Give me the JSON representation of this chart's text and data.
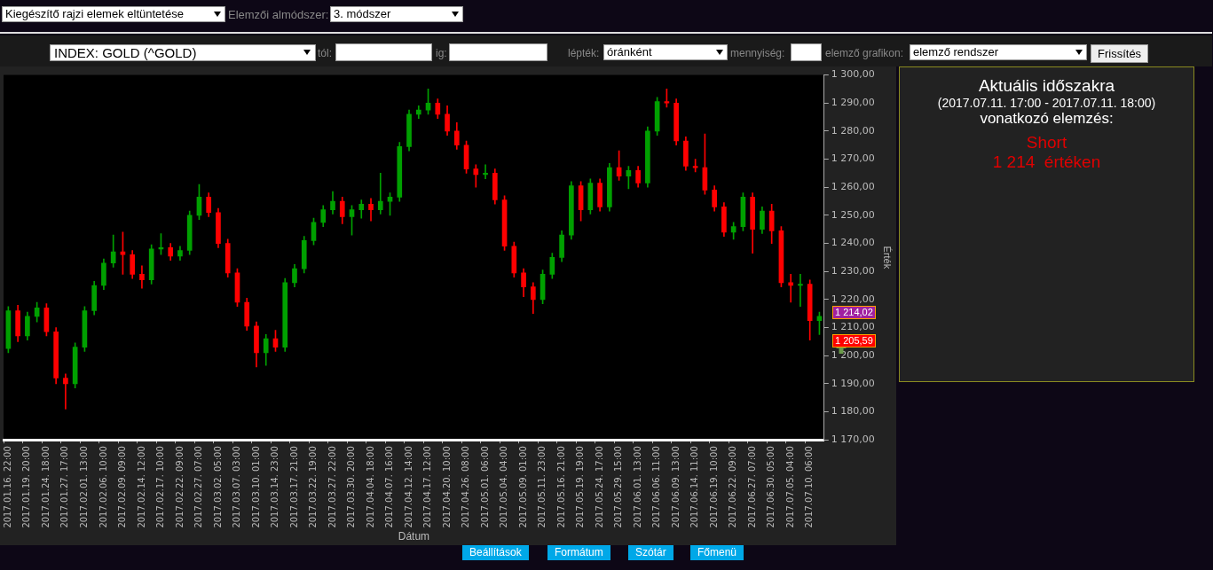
{
  "chart_data": {
    "type": "candlestick",
    "xlabel": "Dátum",
    "ylabel": "Érték",
    "categories": [
      "2017.01.16. 22:00",
      null,
      "2017.01.19. 20:00",
      null,
      "2017.01.24. 18:00",
      null,
      "2017.01.27. 17:00",
      null,
      "2017.02.01. 13:00",
      null,
      "2017.02.06. 10:00",
      null,
      "2017.02.09. 09:00",
      null,
      "2017.02.14. 12:00",
      null,
      "2017.02.17. 10:00",
      null,
      "2017.02.22. 09:00",
      null,
      "2017.02.27. 07:00",
      null,
      "2017.03.02. 05:00",
      null,
      "2017.03.07. 03:00",
      null,
      "2017.03.10. 01:00",
      null,
      "2017.03.14. 23:00",
      null,
      "2017.03.17. 21:00",
      null,
      "2017.03.22. 19:00",
      null,
      "2017.03.27. 22:00",
      null,
      "2017.03.30. 20:00",
      null,
      "2017.04.04. 18:00",
      null,
      "2017.04.07. 16:00",
      null,
      "2017.04.12. 14:00",
      null,
      "2017.04.17. 12:00",
      null,
      "2017.04.20. 10:00",
      null,
      "2017.04.26. 08:00",
      null,
      "2017.05.01. 06:00",
      null,
      "2017.05.04. 04:00",
      null,
      "2017.05.09. 01:00",
      null,
      "2017.05.11. 23:00",
      null,
      "2017.05.16. 21:00",
      null,
      "2017.05.19. 19:00",
      null,
      "2017.05.24. 17:00",
      null,
      "2017.05.29. 15:00",
      null,
      "2017.06.01. 13:00",
      null,
      "2017.06.06. 11:00",
      null,
      "2017.06.09. 13:00",
      null,
      "2017.06.14. 11:00",
      null,
      "2017.06.19. 10:00",
      null,
      "2017.06.22. 09:00",
      null,
      "2017.06.27. 07:00",
      null,
      "2017.06.30. 05:00",
      null,
      "2017.07.05. 04:00",
      null,
      "2017.07.10. 06:00",
      null
    ],
    "ohlc": [
      [
        1202.5,
        1217.5,
        1201,
        1216
      ],
      [
        1216,
        1218,
        1205,
        1207
      ],
      [
        1207,
        1215.5,
        1205.5,
        1214
      ],
      [
        1214,
        1219,
        1212,
        1217
      ],
      [
        1217,
        1218.5,
        1207,
        1208.5
      ],
      [
        1208.5,
        1210,
        1190,
        1192
      ],
      [
        1192,
        1193.5,
        1181,
        1190
      ],
      [
        1190,
        1204.5,
        1188.5,
        1203
      ],
      [
        1203,
        1217.5,
        1201.5,
        1216
      ],
      [
        1216,
        1226.5,
        1214.5,
        1225
      ],
      [
        1225,
        1234.5,
        1223.5,
        1233
      ],
      [
        1233,
        1243,
        1231.5,
        1237
      ],
      [
        1237,
        1244,
        1229,
        1236
      ],
      [
        1236,
        1237.5,
        1227.5,
        1229
      ],
      [
        1229,
        1232,
        1224,
        1227
      ],
      [
        1227,
        1239.5,
        1225.5,
        1238
      ],
      [
        1238,
        1243.5,
        1236,
        1238.5
      ],
      [
        1238.5,
        1240,
        1234,
        1235.5
      ],
      [
        1235.5,
        1239,
        1234,
        1237.5
      ],
      [
        1237.5,
        1251.5,
        1236,
        1250
      ],
      [
        1250,
        1261,
        1248.5,
        1256.5
      ],
      [
        1256.5,
        1258,
        1249.5,
        1251
      ],
      [
        1251,
        1252.5,
        1238.5,
        1240
      ],
      [
        1240,
        1241.5,
        1228,
        1229.5
      ],
      [
        1229.5,
        1231,
        1217.5,
        1219
      ],
      [
        1219,
        1220.5,
        1209,
        1210.5
      ],
      [
        1210.5,
        1212,
        1196,
        1201
      ],
      [
        1201,
        1207.5,
        1196.5,
        1206
      ],
      [
        1206,
        1209,
        1201.5,
        1203
      ],
      [
        1203,
        1227.5,
        1201.5,
        1226
      ],
      [
        1226,
        1232.5,
        1224.5,
        1231
      ],
      [
        1231,
        1242.5,
        1229.5,
        1241
      ],
      [
        1241,
        1249,
        1239.5,
        1247.5
      ],
      [
        1247.5,
        1253.5,
        1246,
        1252
      ],
      [
        1252,
        1258.5,
        1250.5,
        1255
      ],
      [
        1255,
        1256.5,
        1247,
        1249.5
      ],
      [
        1249.5,
        1253.5,
        1243,
        1252
      ],
      [
        1252,
        1255.5,
        1249,
        1254
      ],
      [
        1254,
        1256,
        1248,
        1252
      ],
      [
        1252,
        1265,
        1250.5,
        1255
      ],
      [
        1255,
        1258,
        1250,
        1256.5
      ],
      [
        1256.5,
        1276,
        1255,
        1274.5
      ],
      [
        1274.5,
        1287.5,
        1273,
        1286
      ],
      [
        1286,
        1289,
        1284.5,
        1287.5
      ],
      [
        1287.5,
        1295,
        1286,
        1290
      ],
      [
        1290,
        1291.5,
        1284.5,
        1286
      ],
      [
        1286,
        1289,
        1278.5,
        1280
      ],
      [
        1280,
        1283,
        1273.5,
        1275
      ],
      [
        1275,
        1276.5,
        1265,
        1266.5
      ],
      [
        1266.5,
        1268,
        1260,
        1264.5
      ],
      [
        1264.5,
        1268,
        1263,
        1265
      ],
      [
        1265,
        1266.5,
        1254,
        1255.5
      ],
      [
        1255.5,
        1257,
        1237.5,
        1239
      ],
      [
        1239,
        1240.5,
        1228,
        1229.5
      ],
      [
        1229.5,
        1231,
        1221,
        1224.5
      ],
      [
        1224.5,
        1226,
        1215,
        1220
      ],
      [
        1220,
        1230.5,
        1218.5,
        1229
      ],
      [
        1229,
        1236.5,
        1227.5,
        1235
      ],
      [
        1235,
        1244.5,
        1233.5,
        1243
      ],
      [
        1243,
        1262,
        1241.5,
        1260.5
      ],
      [
        1260.5,
        1262,
        1248,
        1252
      ],
      [
        1252,
        1263,
        1250.5,
        1261.5
      ],
      [
        1261.5,
        1263,
        1251.5,
        1253
      ],
      [
        1253,
        1268.5,
        1251.5,
        1267
      ],
      [
        1267,
        1273,
        1262.5,
        1264
      ],
      [
        1264,
        1267.5,
        1259.5,
        1266
      ],
      [
        1266,
        1267.5,
        1260,
        1261.5
      ],
      [
        1261.5,
        1281.5,
        1260,
        1280
      ],
      [
        1280,
        1292,
        1278.5,
        1290.5
      ],
      [
        1290.5,
        1295,
        1288.5,
        1290
      ],
      [
        1290,
        1291.5,
        1275,
        1276.5
      ],
      [
        1276.5,
        1278,
        1266,
        1267.5
      ],
      [
        1267.5,
        1270,
        1265.5,
        1267
      ],
      [
        1267,
        1279,
        1257.5,
        1259
      ],
      [
        1259,
        1260.5,
        1251.5,
        1253
      ],
      [
        1253,
        1254.5,
        1242.5,
        1244
      ],
      [
        1244,
        1247.5,
        1241.5,
        1246
      ],
      [
        1246,
        1258,
        1244.5,
        1256.5
      ],
      [
        1256.5,
        1258,
        1236.5,
        1245
      ],
      [
        1245,
        1253,
        1243.5,
        1251.5
      ],
      [
        1251.5,
        1254,
        1240,
        1244.5
      ],
      [
        1244.5,
        1246,
        1224.5,
        1226
      ],
      [
        1226,
        1229,
        1219,
        1225
      ],
      [
        1225,
        1229,
        1217.5,
        1225.5
      ],
      [
        1225.5,
        1227,
        1205.5,
        1212.5
      ],
      [
        1212.5,
        1215.5,
        1207.5,
        1214
      ]
    ],
    "colors": [
      "#00a000",
      "#ff0000",
      "#00a000",
      "#00a000",
      "#ff0000",
      "#ff0000",
      "#ff0000",
      "#00a000",
      "#00a000",
      "#00a000",
      "#00a000",
      "#00a000",
      "#ff0000",
      "#ff0000",
      "#ff0000",
      "#00a000",
      "#00a000",
      "#ff0000",
      "#00a000",
      "#00a000",
      "#00a000",
      "#ff0000",
      "#ff0000",
      "#ff0000",
      "#ff0000",
      "#ff0000",
      "#ff0000",
      "#00a000",
      "#ff0000",
      "#00a000",
      "#00a000",
      "#00a000",
      "#00a000",
      "#00a000",
      "#00a000",
      "#ff0000",
      "#00a000",
      "#00a000",
      "#ff0000",
      "#00a000",
      "#00a000",
      "#00a000",
      "#00a000",
      "#00a000",
      "#00a000",
      "#ff0000",
      "#ff0000",
      "#ff0000",
      "#ff0000",
      "#ff0000",
      "#00a000",
      "#ff0000",
      "#ff0000",
      "#ff0000",
      "#ff0000",
      "#ff0000",
      "#00a000",
      "#00a000",
      "#00a000",
      "#00a000",
      "#ff0000",
      "#00a000",
      "#ff0000",
      "#00a000",
      "#ff0000",
      "#00a000",
      "#ff0000",
      "#00a000",
      "#00a000",
      "#ff0000",
      "#ff0000",
      "#ff0000",
      "#ff0000",
      "#ff0000",
      "#ff0000",
      "#ff0000",
      "#00a000",
      "#00a000",
      "#ff0000",
      "#00a000",
      "#ff0000",
      "#ff0000",
      "#ff0000",
      "#00a000",
      "#ff0000",
      "#00a000"
    ],
    "ylim": [
      1170,
      1300
    ],
    "yticks": [
      {
        "value": 1170,
        "label": "1 170,00"
      },
      {
        "value": 1180,
        "label": "1 180,00"
      },
      {
        "value": 1190,
        "label": "1 190,00"
      },
      {
        "value": 1200,
        "label": "1 200,00"
      },
      {
        "value": 1210,
        "label": "1 210,00"
      },
      {
        "value": 1220,
        "label": "1 220,00"
      },
      {
        "value": 1230,
        "label": "1 230,00"
      },
      {
        "value": 1240,
        "label": "1 240,00"
      },
      {
        "value": 1250,
        "label": "1 250,00"
      },
      {
        "value": 1260,
        "label": "1 260,00"
      },
      {
        "value": 1270,
        "label": "1 270,00"
      },
      {
        "value": 1280,
        "label": "1 280,00"
      },
      {
        "value": 1290,
        "label": "1 290,00"
      },
      {
        "value": 1300,
        "label": "1 300,00"
      }
    ],
    "annotations": [
      "Kiegészítő rajzi elemek eltüntetése",
      "Elemzői almódszer:",
      "3. módszer",
      "INDEX: GOLD (^GOLD)",
      "tól:",
      "ig:",
      "lépték:",
      "óránként",
      "mennyiség:",
      "elemző grafikon:",
      "elemző rendszer",
      "Frissítés",
      "Aktuális időszakra",
      "(2017.07.11. 17:00 - 2017.07.11. 18:00)",
      "vonatkozó elemzés:",
      "Short",
      "1 214  értéken",
      "Beállítások",
      "Formátum",
      "Szótár",
      "Főmenü",
      "1 214,02",
      "1 205,59"
    ]
  }
}
